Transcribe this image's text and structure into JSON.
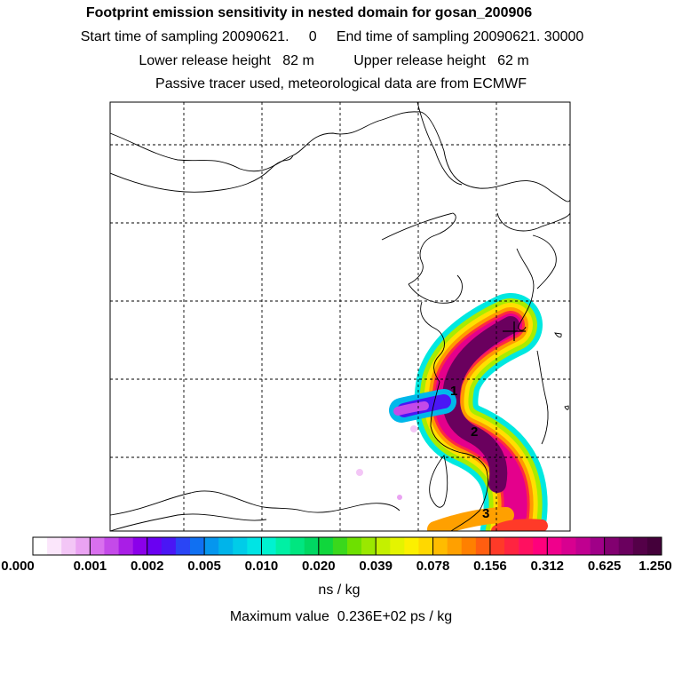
{
  "header": {
    "title": "Footprint emission sensitivity in nested domain for gosan_200906",
    "sampling": "Start time of sampling 20090621.     0     End time of sampling 20090621. 30000",
    "release": "Lower release height   82 m          Upper release height   62 m",
    "tracer": "Passive tracer used, meteorological data are from ECMWF"
  },
  "map": {
    "trajectory_labels": [
      "1",
      "2",
      "3"
    ],
    "receptor_marker": "receptor-cross"
  },
  "colorbar": {
    "ticks": [
      "0.000",
      "0.001",
      "0.002",
      "0.005",
      "0.010",
      "0.020",
      "0.039",
      "0.078",
      "0.156",
      "0.312",
      "0.625",
      "1.250"
    ],
    "colors": [
      "#ffffff",
      "#fbe6fb",
      "#f3c6f6",
      "#eaa3f2",
      "#d970ee",
      "#c44ae9",
      "#a91ee6",
      "#8b00ea",
      "#6a00f2",
      "#4a16f5",
      "#2a45f5",
      "#1070f2",
      "#0596ee",
      "#00b4ea",
      "#00cce8",
      "#00e4e4",
      "#00f2d0",
      "#00f0a4",
      "#00e680",
      "#00d862",
      "#10d63c",
      "#3ad81c",
      "#6ee000",
      "#9ae800",
      "#c4f000",
      "#e4f400",
      "#fcf000",
      "#ffd800",
      "#ffbc00",
      "#ffa000",
      "#ff8000",
      "#ff5e10",
      "#ff3a28",
      "#ff2440",
      "#ff1060",
      "#ff007c",
      "#f0008c",
      "#d80090",
      "#c00090",
      "#a00088",
      "#820070",
      "#6a005e",
      "#540048",
      "#44003a"
    ],
    "unit": "ns / kg"
  },
  "footer": {
    "max_label": "Maximum value  0.236E+02 ps / kg"
  }
}
